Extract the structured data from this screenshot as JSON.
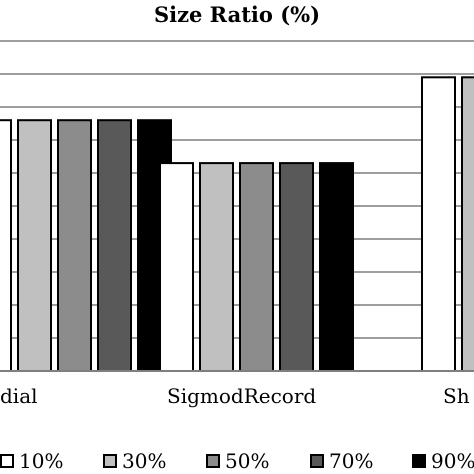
{
  "chart_data": {
    "type": "bar",
    "title": "Size Ratio (%)",
    "categories": [
      "Medial",
      "SigmodRecord",
      "Sh"
    ],
    "visible_categories": [
      "dial",
      "SigmodRecord",
      "Sh"
    ],
    "series": [
      {
        "name": "10%",
        "color": "#ffffff",
        "values": [
          76,
          63,
          89
        ]
      },
      {
        "name": "30%",
        "color": "#c0c0c0",
        "values": [
          76,
          63,
          89
        ]
      },
      {
        "name": "50%",
        "color": "#8c8c8c",
        "values": [
          76,
          63,
          89
        ]
      },
      {
        "name": "70%",
        "color": "#595959",
        "values": [
          76,
          63,
          89
        ]
      },
      {
        "name": "90%",
        "color": "#000000",
        "values": [
          76,
          63,
          89
        ]
      }
    ],
    "ylim": [
      0,
      100
    ],
    "grid": true,
    "legend_position": "bottom",
    "xlabel": "",
    "ylabel": ""
  }
}
